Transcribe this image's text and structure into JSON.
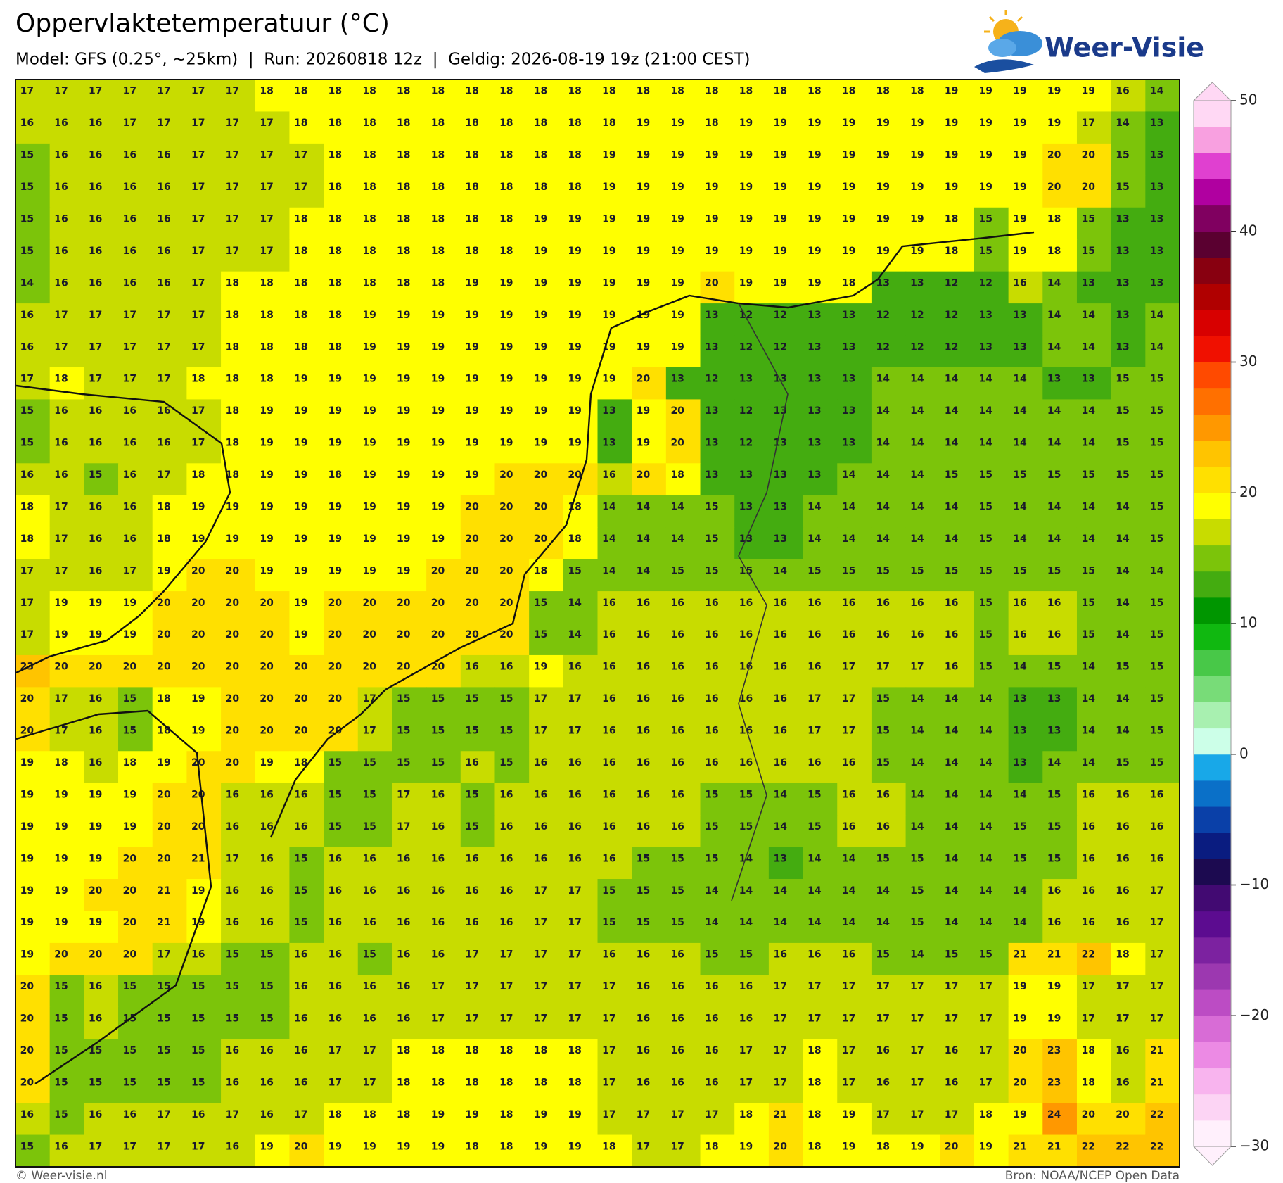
{
  "header": {
    "title": "Oppervlaktetemperatuur (°C)",
    "subtitle": "Model: GFS (0.25°, ~25km)  |  Run: 20260818 12z  |  Geldig: 2026-08-19 19z (21:00 CEST)",
    "logo": "Weer-Visie"
  },
  "map": {
    "type": "heatmap",
    "rows": [
      [
        17,
        17,
        17,
        17,
        17,
        17,
        17,
        18,
        18,
        18,
        18,
        18,
        18,
        18,
        18,
        18,
        18,
        18,
        18,
        18,
        18,
        18,
        18,
        18,
        18,
        18,
        18,
        19,
        19,
        19,
        19,
        19,
        16,
        14
      ],
      [
        16,
        16,
        16,
        17,
        17,
        17,
        17,
        17,
        18,
        18,
        18,
        18,
        18,
        18,
        18,
        18,
        18,
        18,
        19,
        19,
        18,
        19,
        19,
        19,
        19,
        19,
        19,
        19,
        19,
        19,
        19,
        17,
        14,
        13
      ],
      [
        15,
        16,
        16,
        16,
        16,
        17,
        17,
        17,
        17,
        18,
        18,
        18,
        18,
        18,
        18,
        18,
        18,
        19,
        19,
        19,
        19,
        19,
        19,
        19,
        19,
        19,
        19,
        19,
        19,
        19,
        20,
        20,
        15,
        13
      ],
      [
        15,
        16,
        16,
        16,
        16,
        17,
        17,
        17,
        17,
        18,
        18,
        18,
        18,
        18,
        18,
        18,
        18,
        19,
        19,
        19,
        19,
        19,
        19,
        19,
        19,
        19,
        19,
        19,
        19,
        19,
        20,
        20,
        15,
        13
      ],
      [
        15,
        16,
        16,
        16,
        16,
        17,
        17,
        17,
        18,
        18,
        18,
        18,
        18,
        18,
        18,
        19,
        19,
        19,
        19,
        19,
        19,
        19,
        19,
        19,
        19,
        19,
        19,
        18,
        15,
        19,
        18,
        15,
        13,
        13
      ],
      [
        15,
        16,
        16,
        16,
        16,
        17,
        17,
        17,
        18,
        18,
        18,
        18,
        18,
        18,
        18,
        19,
        19,
        19,
        19,
        19,
        19,
        19,
        19,
        19,
        19,
        19,
        19,
        18,
        15,
        19,
        18,
        15,
        13,
        13
      ],
      [
        14,
        16,
        16,
        16,
        16,
        17,
        18,
        18,
        18,
        18,
        18,
        18,
        18,
        19,
        19,
        19,
        19,
        19,
        19,
        19,
        20,
        19,
        19,
        19,
        18,
        13,
        13,
        12,
        12,
        16,
        14,
        13,
        13,
        13
      ],
      [
        16,
        17,
        17,
        17,
        17,
        17,
        18,
        18,
        18,
        18,
        19,
        19,
        19,
        19,
        19,
        19,
        19,
        19,
        19,
        19,
        13,
        12,
        12,
        13,
        13,
        12,
        12,
        12,
        13,
        13,
        14,
        14,
        13,
        14
      ],
      [
        16,
        17,
        17,
        17,
        17,
        17,
        18,
        18,
        18,
        18,
        19,
        19,
        19,
        19,
        19,
        19,
        19,
        19,
        19,
        19,
        13,
        12,
        12,
        13,
        13,
        12,
        12,
        12,
        13,
        13,
        14,
        14,
        13,
        14
      ],
      [
        17,
        18,
        17,
        17,
        17,
        18,
        18,
        18,
        19,
        19,
        19,
        19,
        19,
        19,
        19,
        19,
        19,
        19,
        20,
        13,
        12,
        13,
        13,
        13,
        13,
        14,
        14,
        14,
        14,
        14,
        13,
        13,
        15,
        15
      ],
      [
        15,
        16,
        16,
        16,
        16,
        17,
        18,
        19,
        19,
        19,
        19,
        19,
        19,
        19,
        19,
        19,
        19,
        13,
        19,
        20,
        13,
        12,
        13,
        13,
        13,
        14,
        14,
        14,
        14,
        14,
        14,
        14,
        15,
        15
      ],
      [
        15,
        16,
        16,
        16,
        16,
        17,
        18,
        19,
        19,
        19,
        19,
        19,
        19,
        19,
        19,
        19,
        19,
        13,
        19,
        20,
        13,
        12,
        13,
        13,
        13,
        14,
        14,
        14,
        14,
        14,
        14,
        14,
        15,
        15
      ],
      [
        16,
        16,
        15,
        16,
        17,
        18,
        18,
        19,
        19,
        18,
        19,
        19,
        19,
        19,
        20,
        20,
        20,
        16,
        20,
        18,
        13,
        13,
        13,
        13,
        14,
        14,
        14,
        15,
        15,
        15,
        15,
        15,
        15,
        15
      ],
      [
        18,
        17,
        16,
        16,
        18,
        19,
        19,
        19,
        19,
        19,
        19,
        19,
        19,
        20,
        20,
        20,
        18,
        14,
        14,
        14,
        15,
        13,
        13,
        14,
        14,
        14,
        14,
        14,
        15,
        14,
        14,
        14,
        14,
        15
      ],
      [
        18,
        17,
        16,
        16,
        18,
        19,
        19,
        19,
        19,
        19,
        19,
        19,
        19,
        20,
        20,
        20,
        18,
        14,
        14,
        14,
        15,
        13,
        13,
        14,
        14,
        14,
        14,
        14,
        15,
        14,
        14,
        14,
        14,
        15
      ],
      [
        17,
        17,
        16,
        17,
        19,
        20,
        20,
        19,
        19,
        19,
        19,
        19,
        20,
        20,
        20,
        18,
        15,
        14,
        14,
        15,
        15,
        15,
        14,
        15,
        15,
        15,
        15,
        15,
        15,
        15,
        15,
        15,
        14,
        14
      ],
      [
        17,
        19,
        19,
        19,
        20,
        20,
        20,
        20,
        19,
        20,
        20,
        20,
        20,
        20,
        20,
        15,
        14,
        16,
        16,
        16,
        16,
        16,
        16,
        16,
        16,
        16,
        16,
        16,
        15,
        16,
        16,
        15,
        14,
        15
      ],
      [
        17,
        19,
        19,
        19,
        20,
        20,
        20,
        20,
        19,
        20,
        20,
        20,
        20,
        20,
        20,
        15,
        14,
        16,
        16,
        16,
        16,
        16,
        16,
        16,
        16,
        16,
        16,
        16,
        15,
        16,
        16,
        15,
        14,
        15
      ],
      [
        23,
        20,
        20,
        20,
        20,
        20,
        20,
        20,
        20,
        20,
        20,
        20,
        20,
        16,
        16,
        19,
        16,
        16,
        16,
        16,
        16,
        16,
        16,
        16,
        17,
        17,
        17,
        16,
        15,
        14,
        15,
        14,
        15,
        15
      ],
      [
        20,
        17,
        16,
        15,
        18,
        19,
        20,
        20,
        20,
        20,
        17,
        15,
        15,
        15,
        15,
        17,
        17,
        16,
        16,
        16,
        16,
        16,
        16,
        17,
        17,
        15,
        14,
        14,
        14,
        13,
        13,
        14,
        14,
        15
      ],
      [
        20,
        17,
        16,
        15,
        18,
        19,
        20,
        20,
        20,
        20,
        17,
        15,
        15,
        15,
        15,
        17,
        17,
        16,
        16,
        16,
        16,
        16,
        16,
        17,
        17,
        15,
        14,
        14,
        14,
        13,
        13,
        14,
        14,
        15
      ],
      [
        19,
        18,
        16,
        18,
        19,
        20,
        20,
        19,
        18,
        15,
        15,
        15,
        15,
        16,
        15,
        16,
        16,
        16,
        16,
        16,
        16,
        16,
        16,
        16,
        16,
        15,
        14,
        14,
        14,
        13,
        14,
        14,
        15,
        15
      ],
      [
        19,
        19,
        19,
        19,
        20,
        20,
        16,
        16,
        16,
        15,
        15,
        17,
        16,
        15,
        16,
        16,
        16,
        16,
        16,
        16,
        15,
        15,
        14,
        15,
        16,
        16,
        14,
        14,
        14,
        14,
        15,
        16,
        16,
        16
      ],
      [
        19,
        19,
        19,
        19,
        20,
        20,
        16,
        16,
        16,
        15,
        15,
        17,
        16,
        15,
        16,
        16,
        16,
        16,
        16,
        16,
        15,
        15,
        14,
        15,
        16,
        16,
        14,
        14,
        14,
        15,
        15,
        16,
        16,
        16
      ],
      [
        19,
        19,
        19,
        20,
        20,
        21,
        17,
        16,
        15,
        16,
        16,
        16,
        16,
        16,
        16,
        16,
        16,
        16,
        15,
        15,
        15,
        14,
        13,
        14,
        14,
        15,
        15,
        14,
        14,
        15,
        15,
        16,
        16,
        16
      ],
      [
        19,
        19,
        20,
        20,
        21,
        19,
        16,
        16,
        15,
        16,
        16,
        16,
        16,
        16,
        16,
        17,
        17,
        15,
        15,
        15,
        14,
        14,
        14,
        14,
        14,
        14,
        15,
        14,
        14,
        14,
        16,
        16,
        16,
        17
      ],
      [
        19,
        19,
        19,
        20,
        21,
        19,
        16,
        16,
        15,
        16,
        16,
        16,
        16,
        16,
        16,
        17,
        17,
        15,
        15,
        15,
        14,
        14,
        14,
        14,
        14,
        14,
        15,
        14,
        14,
        14,
        16,
        16,
        16,
        17
      ],
      [
        19,
        20,
        20,
        20,
        17,
        16,
        15,
        15,
        16,
        16,
        15,
        16,
        16,
        17,
        17,
        17,
        17,
        16,
        16,
        16,
        15,
        15,
        16,
        16,
        16,
        15,
        14,
        15,
        15,
        21,
        21,
        22,
        18,
        17
      ],
      [
        20,
        15,
        16,
        15,
        15,
        15,
        15,
        15,
        16,
        16,
        16,
        16,
        17,
        17,
        17,
        17,
        17,
        17,
        16,
        16,
        16,
        16,
        17,
        17,
        17,
        17,
        17,
        17,
        17,
        19,
        19,
        17,
        17,
        17
      ],
      [
        20,
        15,
        16,
        15,
        15,
        15,
        15,
        15,
        16,
        16,
        16,
        16,
        17,
        17,
        17,
        17,
        17,
        17,
        16,
        16,
        16,
        16,
        17,
        17,
        17,
        17,
        17,
        17,
        17,
        19,
        19,
        17,
        17,
        17
      ],
      [
        20,
        15,
        15,
        15,
        15,
        15,
        16,
        16,
        16,
        17,
        17,
        18,
        18,
        18,
        18,
        18,
        18,
        17,
        16,
        16,
        16,
        17,
        17,
        18,
        17,
        16,
        17,
        16,
        17,
        20,
        23,
        18,
        16,
        21
      ],
      [
        20,
        15,
        15,
        15,
        15,
        15,
        16,
        16,
        16,
        17,
        17,
        18,
        18,
        18,
        18,
        18,
        18,
        17,
        16,
        16,
        16,
        17,
        17,
        18,
        17,
        16,
        17,
        16,
        17,
        20,
        23,
        18,
        16,
        21
      ],
      [
        16,
        15,
        16,
        16,
        17,
        16,
        17,
        16,
        17,
        18,
        18,
        18,
        19,
        19,
        18,
        19,
        19,
        17,
        17,
        17,
        17,
        18,
        21,
        18,
        19,
        17,
        17,
        17,
        18,
        19,
        24,
        20,
        20,
        22
      ],
      [
        15,
        16,
        17,
        17,
        17,
        17,
        16,
        19,
        20,
        19,
        19,
        19,
        19,
        18,
        18,
        19,
        19,
        18,
        17,
        17,
        18,
        19,
        20,
        18,
        19,
        18,
        19,
        20,
        19,
        21,
        21,
        22,
        22,
        22
      ]
    ],
    "colorbar": {
      "lim": [
        -30,
        50
      ],
      "ticks": [
        50,
        40,
        30,
        20,
        10,
        0,
        {
          "value": -10,
          "label": "−10"
        },
        {
          "value": -20,
          "label": "−20"
        },
        {
          "value": -30,
          "label": "−30"
        }
      ],
      "colors": [
        "#fff0fc",
        "#fcd4f4",
        "#f8b4ee",
        "#ec8ae4",
        "#d86cd6",
        "#bc4cc4",
        "#9c38b0",
        "#7c22a0",
        "#5c0c90",
        "#420a72",
        "#1c0a50",
        "#0a1c80",
        "#0a40a8",
        "#0a70c8",
        "#18a8e8",
        "#ccffe8",
        "#a8f0b0",
        "#78dc78",
        "#48c848",
        "#10b810",
        "#009600",
        "#44ac10",
        "#7cc40a",
        "#c8dc00",
        "#ffff00",
        "#ffe000",
        "#ffc400",
        "#ff9800",
        "#ff7000",
        "#ff4a00",
        "#f01000",
        "#d80000",
        "#b00000",
        "#880010",
        "#5a0030",
        "#800060",
        "#b000a0",
        "#e040d0",
        "#f8a0e0",
        "#ffd8f4"
      ]
    }
  },
  "footer": {
    "left": "© Weer-visie.nl",
    "right": "Bron: NOAA/NCEP Open Data"
  }
}
